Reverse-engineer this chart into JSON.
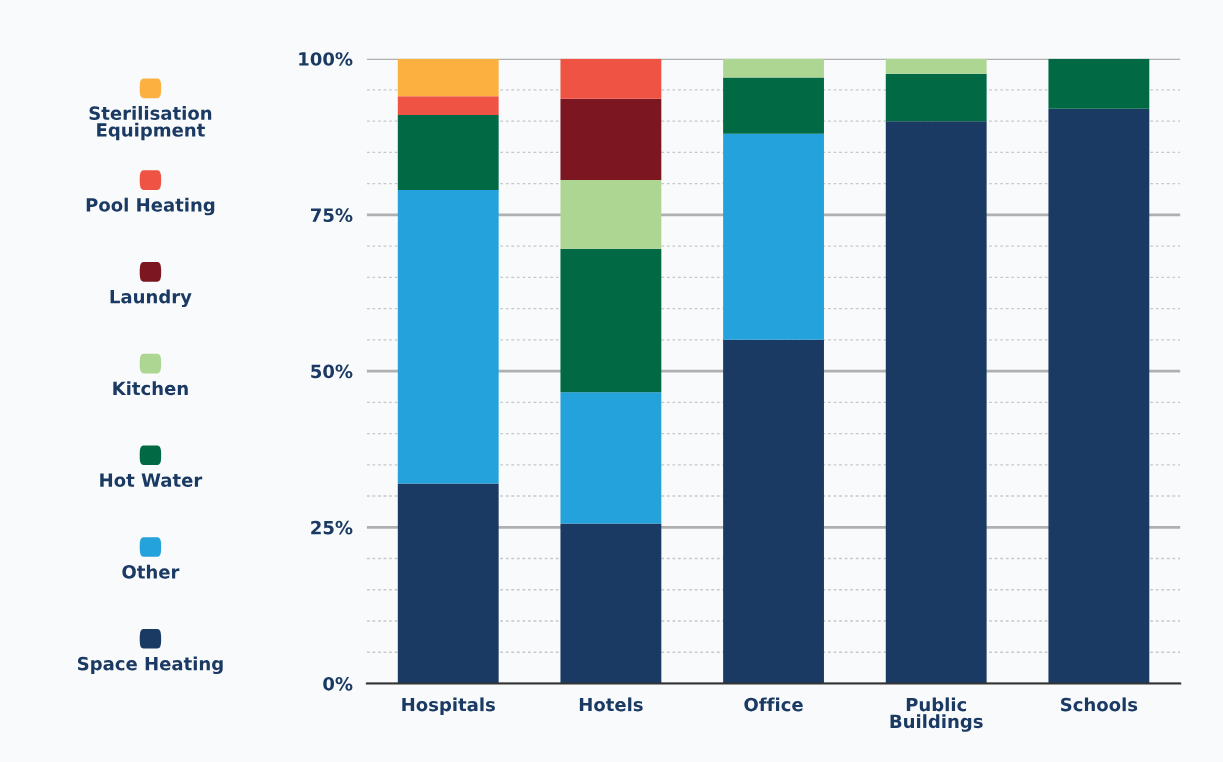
{
  "chart_data": {
    "type": "bar",
    "stacked": true,
    "categories": [
      "Hospitals",
      "Hotels",
      "Office",
      "Public Buildings",
      "Schools"
    ],
    "series": [
      {
        "name": "Space Heating",
        "color": "#1b3a63",
        "values": [
          32,
          25.6,
          55,
          90,
          92
        ]
      },
      {
        "name": "Other",
        "color": "#24a2dc",
        "values": [
          47,
          21,
          33,
          null,
          null
        ]
      },
      {
        "name": "Hot Water",
        "color": "#016a45",
        "values": [
          12,
          23,
          9,
          7.6,
          8
        ]
      },
      {
        "name": "Kitchen",
        "color": "#aed693",
        "values": [
          null,
          11,
          3,
          2.4,
          null
        ]
      },
      {
        "name": "Laundry",
        "color": "#7c1620",
        "values": [
          null,
          13,
          null,
          null,
          null
        ]
      },
      {
        "name": "Pool Heating",
        "color": "#ef5344",
        "values": [
          3,
          6.4,
          null,
          null,
          null
        ]
      },
      {
        "name": "Sterilisation Equipment",
        "color": "#fbb040",
        "values": [
          6,
          null,
          null,
          null,
          null
        ]
      }
    ],
    "ylim": [
      0,
      100
    ],
    "yticks": [
      {
        "value": 0,
        "label": "0%"
      },
      {
        "value": 5,
        "label": null
      },
      {
        "value": 10,
        "label": null
      },
      {
        "value": 15,
        "label": null
      },
      {
        "value": 20,
        "label": null
      },
      {
        "value": 25,
        "label": "25%"
      },
      {
        "value": 30,
        "label": null
      },
      {
        "value": 35,
        "label": null
      },
      {
        "value": 40,
        "label": null
      },
      {
        "value": 45,
        "label": null
      },
      {
        "value": 50,
        "label": "50%"
      },
      {
        "value": 55,
        "label": null
      },
      {
        "value": 60,
        "label": null
      },
      {
        "value": 65,
        "label": null
      },
      {
        "value": 70,
        "label": null
      },
      {
        "value": 75,
        "label": "75%"
      },
      {
        "value": 80,
        "label": null
      },
      {
        "value": 85,
        "label": null
      },
      {
        "value": 90,
        "label": null
      },
      {
        "value": 95,
        "label": null
      },
      {
        "value": 100,
        "label": "100%"
      }
    ],
    "grid": "y",
    "legend": "left"
  }
}
